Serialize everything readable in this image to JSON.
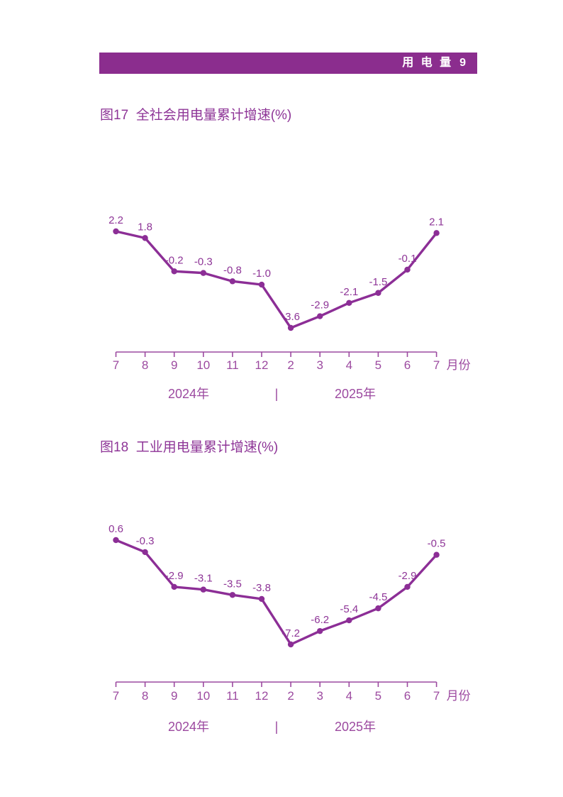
{
  "header": {
    "section_title": "用 电 量",
    "page_number": "9"
  },
  "colors": {
    "page_bg": "#FFFFFF",
    "header_bg": "#8B2D8E",
    "header_text": "#FFFFFF",
    "title_text": "#8E3597",
    "line": "#8C2E96",
    "point_label": "#8E3597",
    "axis_text": "#9C4AA0"
  },
  "chart_data": [
    {
      "type": "line",
      "title": "图17  全社会用电量累计增速(%)",
      "x_categories": [
        "7",
        "8",
        "9",
        "10",
        "11",
        "12",
        "2",
        "3",
        "4",
        "5",
        "6",
        "7"
      ],
      "values": [
        2.2,
        1.8,
        -0.2,
        -0.3,
        -0.8,
        -1.0,
        -3.6,
        -2.9,
        -2.1,
        -1.5,
        -0.1,
        2.1
      ],
      "xlabel": "月份",
      "year_groups": [
        "2024年",
        "2025年"
      ],
      "year_separator": "|",
      "ylim": [
        -4.5,
        3
      ],
      "grid": false,
      "legend": "none",
      "data_labels": true
    },
    {
      "type": "line",
      "title": "图18  工业用电量累计增速(%)",
      "x_categories": [
        "7",
        "8",
        "9",
        "10",
        "11",
        "12",
        "2",
        "3",
        "4",
        "5",
        "6",
        "7"
      ],
      "values": [
        0.6,
        -0.3,
        -2.9,
        -3.1,
        -3.5,
        -3.8,
        -7.2,
        -6.2,
        -5.4,
        -4.5,
        -2.9,
        -0.5
      ],
      "xlabel": "月份",
      "year_groups": [
        "2024年",
        "2025年"
      ],
      "year_separator": "|",
      "ylim": [
        -8.5,
        1.5
      ],
      "grid": false,
      "legend": "none",
      "data_labels": true
    }
  ]
}
